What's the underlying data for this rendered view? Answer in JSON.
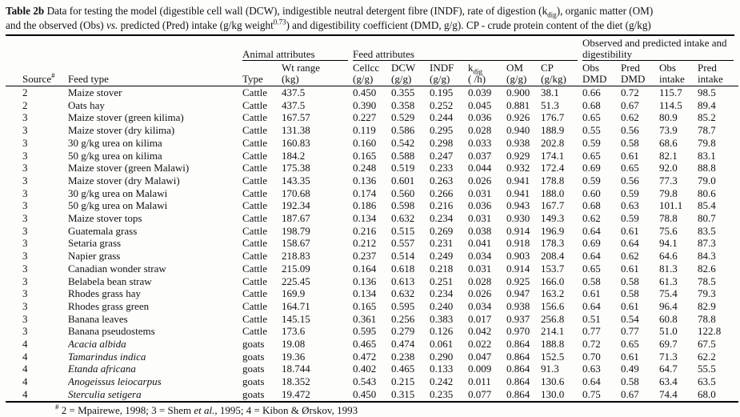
{
  "title": {
    "bold": "Table 2b",
    "seg1": " Data for testing the model (digestible cell wall (DCW), indigestible neutral detergent fibre (INDF), rate of digestion (k",
    "sub": "dig",
    "seg2": "), organic matter (OM)",
    "line2_seg1": "and the observed (Obs) ",
    "vs": "vs.",
    "line2_seg2": " predicted (Pred) intake (g/kg weight",
    "sup": "0.73",
    "line2_seg3": ") and digestibility coefficient (DMD, g/g). CP - crude protein content of the diet (g/kg)"
  },
  "table": {
    "groups": {
      "animal": "Animal attributes",
      "feed": "Feed attributes",
      "obs_pred": "Observed and predicted intake and digestibility"
    },
    "columns": [
      {
        "line1": "Source",
        "sup": "#"
      },
      {
        "line1": "Feed type"
      },
      {
        "line1": "Type"
      },
      {
        "line1": "Wt range",
        "line2": "(kg)"
      },
      {
        "line1": "Cellcc",
        "line2": "(g/g)"
      },
      {
        "line1": "DCW",
        "line2": "(g/g)"
      },
      {
        "line1": "INDF",
        "line2": "(g/g)"
      },
      {
        "line1": "k",
        "sub": "dig",
        "line2": "( /h)"
      },
      {
        "line1": "OM",
        "line2": "(g/g)"
      },
      {
        "line1": "CP",
        "line2": "(g/kg)"
      },
      {
        "line1": "Obs",
        "line2": "DMD"
      },
      {
        "line1": "Pred",
        "line2": "DMD"
      },
      {
        "line1": "Obs",
        "line2": "intake"
      },
      {
        "line1": "Pred",
        "line2": "intake"
      }
    ],
    "col_keys": [
      "source",
      "feed-type",
      "animal-type",
      "wt-range",
      "cellcc",
      "dcw",
      "indf",
      "kdig",
      "om",
      "cp",
      "obs-dmd",
      "pred-dmd",
      "obs-intake",
      "pred-intake"
    ],
    "rows": [
      {
        "feed_italic": false,
        "cells": [
          "2",
          "Maize stover",
          "Cattle",
          "437.5",
          "0.450",
          "0.355",
          "0.195",
          "0.039",
          "0.900",
          "38.1",
          "0.66",
          "0.72",
          "115.7",
          "98.5"
        ]
      },
      {
        "feed_italic": false,
        "cells": [
          "2",
          "Oats hay",
          "Cattle",
          "437.5",
          "0.390",
          "0.358",
          "0.252",
          "0.045",
          "0.881",
          "51.3",
          "0.68",
          "0.67",
          "114.5",
          "89.4"
        ]
      },
      {
        "feed_italic": false,
        "cells": [
          "3",
          "Maize stover (green kilima)",
          "Cattle",
          "167.57",
          "0.227",
          "0.529",
          "0.244",
          "0.036",
          "0.926",
          "176.7",
          "0.65",
          "0.62",
          "80.9",
          "85.2"
        ]
      },
      {
        "feed_italic": false,
        "cells": [
          "3",
          "Maize stover (dry kilima)",
          "Cattle",
          "131.38",
          "0.119",
          "0.586",
          "0.295",
          "0.028",
          "0.940",
          "188.9",
          "0.55",
          "0.56",
          "73.9",
          "78.7"
        ]
      },
      {
        "feed_italic": false,
        "cells": [
          "3",
          "30 g/kg urea on kilima",
          "Cattle",
          "160.83",
          "0.160",
          "0.542",
          "0.298",
          "0.033",
          "0.938",
          "202.8",
          "0.59",
          "0.58",
          "68.6",
          "79.8"
        ]
      },
      {
        "feed_italic": false,
        "cells": [
          "3",
          "50 g/kg urea on kilima",
          "Cattle",
          "184.2",
          "0.165",
          "0.588",
          "0.247",
          "0.037",
          "0.929",
          "174.1",
          "0.65",
          "0.61",
          "82.1",
          "83.1"
        ]
      },
      {
        "feed_italic": false,
        "cells": [
          "3",
          "Maize stover (green Malawi)",
          "Cattle",
          "175.38",
          "0.248",
          "0.519",
          "0.233",
          "0.044",
          "0.932",
          "172.4",
          "0.69",
          "0.65",
          "92.0",
          "88.8"
        ]
      },
      {
        "feed_italic": false,
        "cells": [
          "3",
          "Maize stover (dry Malawi)",
          "Cattle",
          "143.35",
          "0.136",
          "0.601",
          "0.263",
          "0.026",
          "0.941",
          "178.8",
          "0.59",
          "0.56",
          "77.3",
          "79.0"
        ]
      },
      {
        "feed_italic": false,
        "cells": [
          "3",
          "30 g/kg urea on Malawi",
          "Cattle",
          "170.68",
          "0.174",
          "0.560",
          "0.266",
          "0.031",
          "0.941",
          "188.0",
          "0.60",
          "0.59",
          "79.8",
          "80.6"
        ]
      },
      {
        "feed_italic": false,
        "cells": [
          "3",
          "50 g/kg urea on Malawi",
          "Cattle",
          "192.34",
          "0.186",
          "0.598",
          "0.216",
          "0.036",
          "0.943",
          "167.7",
          "0.68",
          "0.63",
          "101.1",
          "85.4"
        ]
      },
      {
        "feed_italic": false,
        "cells": [
          "3",
          "Maize stover tops",
          "Cattle",
          "187.67",
          "0.134",
          "0.632",
          "0.234",
          "0.031",
          "0.930",
          "149.3",
          "0.62",
          "0.59",
          "78.8",
          "80.7"
        ]
      },
      {
        "feed_italic": false,
        "cells": [
          "3",
          "Guatemala grass",
          "Cattle",
          "198.79",
          "0.216",
          "0.515",
          "0.269",
          "0.038",
          "0.914",
          "196.9",
          "0.64",
          "0.61",
          "75.6",
          "83.5"
        ]
      },
      {
        "feed_italic": false,
        "cells": [
          "3",
          "Setaria grass",
          "Cattle",
          "158.67",
          "0.212",
          "0.557",
          "0.231",
          "0.041",
          "0.918",
          "178.3",
          "0.69",
          "0.64",
          "94.1",
          "87.3"
        ]
      },
      {
        "feed_italic": false,
        "cells": [
          "3",
          "Napier grass",
          "Cattle",
          "218.83",
          "0.237",
          "0.514",
          "0.249",
          "0.034",
          "0.903",
          "208.4",
          "0.64",
          "0.62",
          "64.6",
          "84.3"
        ]
      },
      {
        "feed_italic": false,
        "cells": [
          "3",
          "Canadian wonder straw",
          "Cattle",
          "215.09",
          "0.164",
          "0.618",
          "0.218",
          "0.031",
          "0.914",
          "153.7",
          "0.65",
          "0.61",
          "81.3",
          "82.6"
        ]
      },
      {
        "feed_italic": false,
        "cells": [
          "3",
          "Belabela bean straw",
          "Cattle",
          "225.45",
          "0.136",
          "0.613",
          "0.251",
          "0.028",
          "0.925",
          "166.0",
          "0.58",
          "0.58",
          "61.3",
          "78.5"
        ]
      },
      {
        "feed_italic": false,
        "cells": [
          "3",
          "Rhodes grass hay",
          "Cattle",
          "169.9",
          "0.134",
          "0.632",
          "0.234",
          "0.026",
          "0.947",
          "163.2",
          "0.61",
          "0.58",
          "75.4",
          "79.3"
        ]
      },
      {
        "feed_italic": false,
        "cells": [
          "3",
          "Rhodes grass green",
          "Cattle",
          "164.71",
          "0.165",
          "0.595",
          "0.240",
          "0.034",
          "0.938",
          "156.6",
          "0.64",
          "0.61",
          "96.4",
          "82.9"
        ]
      },
      {
        "feed_italic": false,
        "cells": [
          "3",
          "Banana leaves",
          "Cattle",
          "145.15",
          "0.361",
          "0.256",
          "0.383",
          "0.017",
          "0.937",
          "256.8",
          "0.51",
          "0.54",
          "60.8",
          "78.8"
        ]
      },
      {
        "feed_italic": false,
        "cells": [
          "3",
          "Banana pseudostems",
          "Cattle",
          "173.6",
          "0.595",
          "0.279",
          "0.126",
          "0.042",
          "0.970",
          "214.1",
          "0.77",
          "0.77",
          "51.0",
          "122.8"
        ]
      },
      {
        "feed_italic": true,
        "cells": [
          "4",
          "Acacia albida",
          "goats",
          "19.08",
          "0.465",
          "0.474",
          "0.061",
          "0.022",
          "0.864",
          "188.8",
          "0.72",
          "0.65",
          "69.7",
          "67.5"
        ]
      },
      {
        "feed_italic": true,
        "cells": [
          "4",
          "Tamarindus indica",
          "goats",
          "19.36",
          "0.472",
          "0.238",
          "0.290",
          "0.047",
          "0.864",
          "152.5",
          "0.70",
          "0.61",
          "71.3",
          "62.2"
        ]
      },
      {
        "feed_italic": true,
        "cells": [
          "4",
          "Etanda africana",
          "goats",
          "18.744",
          "0.402",
          "0.465",
          "0.133",
          "0.009",
          "0.864",
          "91.3",
          "0.63",
          "0.49",
          "64.7",
          "55.5"
        ]
      },
      {
        "feed_italic": true,
        "cells": [
          "4",
          "Anogeissus leiocarpus",
          "goats",
          "18.352",
          "0.543",
          "0.215",
          "0.242",
          "0.011",
          "0.864",
          "130.6",
          "0.64",
          "0.58",
          "63.4",
          "63.5"
        ]
      },
      {
        "feed_italic": true,
        "cells": [
          "4",
          "Sterculia setigera",
          "goats",
          "19.472",
          "0.450",
          "0.315",
          "0.235",
          "0.077",
          "0.864",
          "130.0",
          "0.75",
          "0.67",
          "74.4",
          "68.0"
        ]
      }
    ]
  },
  "footnote": {
    "sup": "#",
    "seg1": " 2 = Mpairewe, 1998; 3 = Shem ",
    "italic": "et al.",
    "seg2": ", 1995; 4 = Kibon & Ørskov, 1993"
  }
}
